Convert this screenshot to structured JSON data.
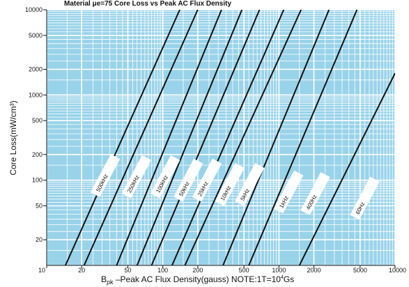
{
  "chart_data": {
    "type": "line",
    "title": "Material μe=75 Core Loss vs Peak AC Flux Density",
    "xlabel_main": "B",
    "xlabel_sub": "pk",
    "xlabel_rest": " –Peak AC Flux Density(gauss)  NOTE:1T=10",
    "xlabel_sup": "4",
    "xlabel_end": "Gs",
    "ylabel": "Core Loss(mW/cm³)",
    "x_scale": "log",
    "y_scale": "log",
    "xlim": [
      10,
      10000
    ],
    "ylim": [
      10,
      10000
    ],
    "grid": true,
    "x_ticks": [
      {
        "value": 10,
        "label": "10"
      },
      {
        "value": 20,
        "label": "20"
      },
      {
        "value": 50,
        "label": "50"
      },
      {
        "value": 100,
        "label": "100"
      },
      {
        "value": 200,
        "label": "200"
      },
      {
        "value": 500,
        "label": "500"
      },
      {
        "value": 1000,
        "label": "1000"
      },
      {
        "value": 2000,
        "label": "2000"
      },
      {
        "value": 5000,
        "label": "5000"
      },
      {
        "value": 10000,
        "label": "10000"
      }
    ],
    "y_ticks": [
      {
        "value": 10000,
        "label": "10000"
      },
      {
        "value": 5000,
        "label": "5000"
      },
      {
        "value": 2000,
        "label": "2000"
      },
      {
        "value": 1000,
        "label": "1000"
      },
      {
        "value": 500,
        "label": "500"
      },
      {
        "value": 200,
        "label": "200"
      },
      {
        "value": 100,
        "label": "100"
      },
      {
        "value": 50,
        "label": "50"
      },
      {
        "value": 20,
        "label": "20"
      }
    ],
    "series": [
      {
        "name": "500kHz",
        "points": [
          [
            14.5,
            10
          ],
          [
            140,
            10000
          ]
        ]
      },
      {
        "name": "250kHz",
        "points": [
          [
            21,
            10
          ],
          [
            200,
            10000
          ]
        ]
      },
      {
        "name": "100kHz",
        "points": [
          [
            40,
            10
          ],
          [
            320,
            10000
          ]
        ]
      },
      {
        "name": "50kHz",
        "points": [
          [
            60,
            10
          ],
          [
            480,
            10000
          ]
        ]
      },
      {
        "name": "25kHz",
        "points": [
          [
            80,
            10
          ],
          [
            680,
            10000
          ]
        ]
      },
      {
        "name": "10kHz",
        "points": [
          [
            120,
            10
          ],
          [
            1100,
            10000
          ]
        ]
      },
      {
        "name": "5kHz",
        "points": [
          [
            155,
            10
          ],
          [
            1550,
            10000
          ]
        ]
      },
      {
        "name": "1kHz",
        "points": [
          [
            330,
            10
          ],
          [
            2700,
            10000
          ]
        ]
      },
      {
        "name": "400Hz",
        "points": [
          [
            550,
            10
          ],
          [
            4700,
            10000
          ]
        ]
      },
      {
        "name": "60Hz",
        "points": [
          [
            1500,
            10
          ],
          [
            10000,
            1800
          ]
        ]
      }
    ],
    "series_labels": [
      {
        "name": "500kHz",
        "x": 28,
        "y": 70
      },
      {
        "name": "250kHz",
        "x": 52,
        "y": 68
      },
      {
        "name": "100kHz",
        "x": 92,
        "y": 68
      },
      {
        "name": "50kHz",
        "x": 145,
        "y": 62
      },
      {
        "name": "25kHz",
        "x": 210,
        "y": 62
      },
      {
        "name": "10kHz",
        "x": 330,
        "y": 55
      },
      {
        "name": "5kHz",
        "x": 490,
        "y": 55
      },
      {
        "name": "1kHz",
        "x": 1060,
        "y": 45
      },
      {
        "name": "400Hz",
        "x": 1800,
        "y": 43
      },
      {
        "name": "60Hz",
        "x": 4800,
        "y": 38
      }
    ],
    "colors": {
      "plot_background": "#99d3ea",
      "grid": "#ffffff",
      "curves": "#111111",
      "label_box": "#ffffff"
    }
  }
}
